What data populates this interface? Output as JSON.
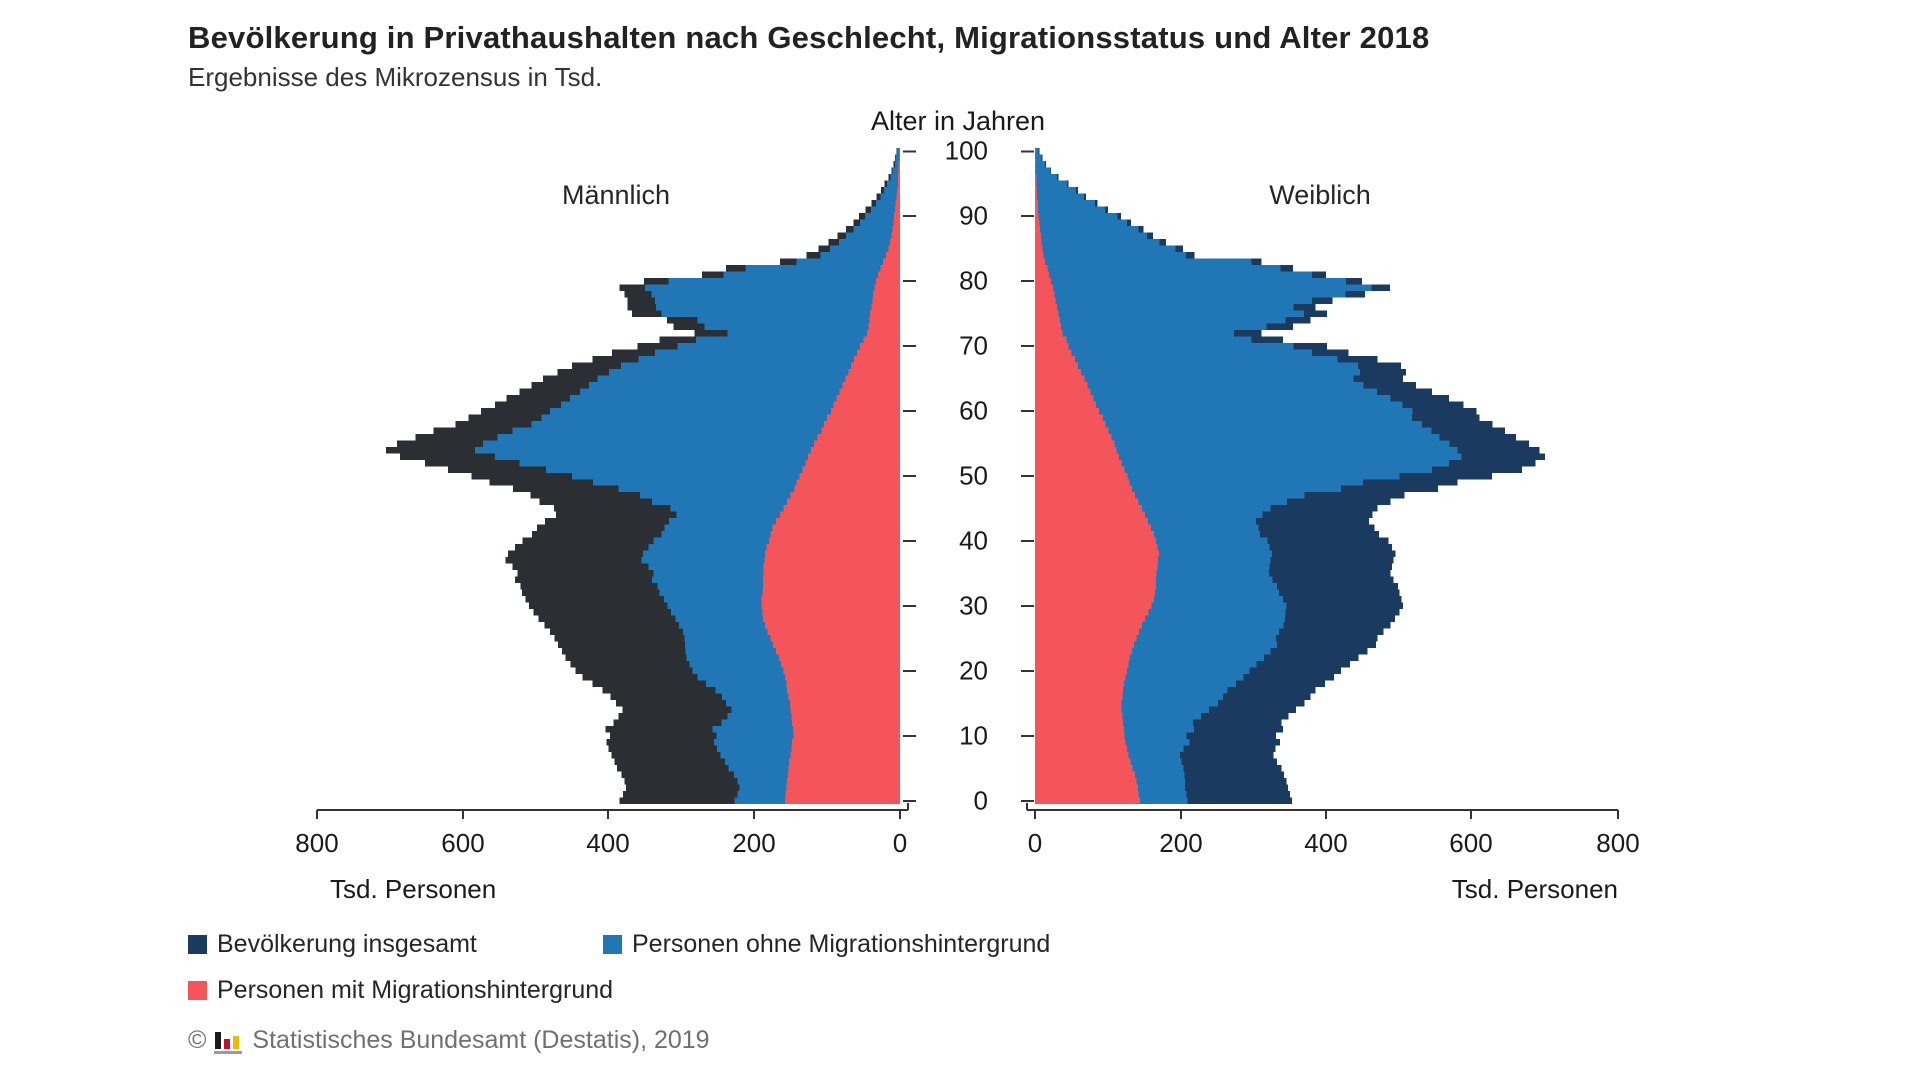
{
  "title": "Bevölkerung in Privathaushalten nach Geschlecht, Migrationsstatus und Alter 2018",
  "subtitle": "Ergebnisse des Mikrozensus in Tsd.",
  "center_axis": {
    "label": "Alter in Jahren",
    "tick_values": [
      0,
      10,
      20,
      30,
      40,
      50,
      60,
      70,
      80,
      90,
      100
    ]
  },
  "left_panel": {
    "header": "Männlich",
    "x_tick_labels": [
      "800",
      "600",
      "400",
      "200",
      "0"
    ],
    "x_axis_label": "Tsd. Personen"
  },
  "right_panel": {
    "header": "Weiblich",
    "x_tick_labels": [
      "0",
      "200",
      "400",
      "600",
      "800"
    ],
    "x_axis_label": "Tsd. Personen"
  },
  "legend": [
    {
      "label": "Bevölkerung insgesamt",
      "color": "#1b3a5f"
    },
    {
      "label": "Personen ohne Migrationshintergrund",
      "color": "#2176b5"
    },
    {
      "label": "Personen mit Migrationshintergrund",
      "color": "#f4555a"
    }
  ],
  "footer": {
    "copyright": "©",
    "source": "Statistisches Bundesamt (Destatis), 2019"
  },
  "colors": {
    "male_total": "#2b2e33",
    "female_total": "#1b3a5f",
    "ohne_migration": "#2176b5",
    "mit_migration": "#f4555a",
    "axis": "#333333",
    "text": "#1a1a1a"
  },
  "chart_data": {
    "type": "bar",
    "variant": "population-pyramid",
    "unit": "Tsd. Personen",
    "age_min": 0,
    "age_max": 100,
    "x_range_each_side": [
      0,
      800
    ],
    "series": [
      {
        "name": "Männlich – Bevölkerung insgesamt",
        "values": [
          385,
          380,
          376,
          378,
          382,
          388,
          392,
          396,
          400,
          403,
          398,
          404,
          393,
          386,
          381,
          390,
          397,
          408,
          422,
          436,
          445,
          452,
          459,
          464,
          469,
          474,
          480,
          488,
          496,
          503,
          509,
          514,
          519,
          521,
          528,
          525,
          532,
          541,
          538,
          528,
          518,
          505,
          498,
          487,
          472,
          475,
          495,
          507,
          531,
          563,
          588,
          620,
          652,
          686,
          705,
          690,
          665,
          640,
          610,
          592,
          575,
          556,
          540,
          522,
          506,
          490,
          470,
          450,
          422,
          395,
          360,
          330,
          282,
          311,
          320,
          368,
          374,
          374,
          378,
          385,
          351,
          272,
          239,
          165,
          128,
          112,
          98,
          86,
          74,
          64,
          56,
          47,
          39,
          32,
          26,
          21,
          16,
          12,
          9,
          7,
          5
        ]
      },
      {
        "name": "Männlich – Personen ohne Migrationshintergrund",
        "values": [
          227,
          223,
          220,
          223,
          228,
          235,
          240,
          246,
          251,
          255,
          252,
          257,
          245,
          237,
          231,
          239,
          244,
          253,
          266,
          278,
          285,
          289,
          293,
          294,
          295,
          296,
          298,
          303,
          308,
          314,
          319,
          324,
          330,
          333,
          340,
          338,
          345,
          355,
          353,
          345,
          338,
          327,
          323,
          317,
          307,
          315,
          340,
          357,
          386,
          421,
          450,
          486,
          522,
          556,
          583,
          572,
          552,
          532,
          506,
          492,
          480,
          465,
          453,
          439,
          427,
          415,
          399,
          383,
          359,
          336,
          305,
          280,
          237,
          268,
          278,
          327,
          335,
          336,
          341,
          350,
          318,
          242,
          212,
          142,
          109,
          96,
          84,
          74,
          64,
          55,
          48,
          40,
          33,
          27,
          22,
          18,
          13,
          10,
          7,
          6,
          4
        ]
      },
      {
        "name": "Männlich – Personen mit Migrationshintergrund",
        "values": [
          158,
          157,
          156,
          155,
          154,
          153,
          152,
          150,
          149,
          148,
          146,
          147,
          148,
          149,
          150,
          151,
          153,
          155,
          156,
          158,
          160,
          163,
          166,
          170,
          174,
          178,
          182,
          185,
          188,
          189,
          190,
          190,
          189,
          188,
          188,
          187,
          187,
          186,
          185,
          183,
          180,
          178,
          175,
          170,
          165,
          160,
          155,
          150,
          145,
          142,
          138,
          134,
          130,
          126,
          122,
          118,
          113,
          108,
          104,
          100,
          95,
          91,
          87,
          83,
          79,
          75,
          71,
          67,
          63,
          59,
          55,
          50,
          45,
          43,
          42,
          41,
          39,
          38,
          37,
          35,
          33,
          30,
          27,
          23,
          19,
          16,
          14,
          12,
          10,
          9,
          8,
          7,
          6,
          5,
          4,
          3,
          3,
          2,
          2,
          1,
          1
        ]
      },
      {
        "name": "Weiblich – Bevölkerung insgesamt",
        "values": [
          353,
          350,
          347,
          345,
          342,
          338,
          332,
          327,
          330,
          336,
          331,
          340,
          338,
          348,
          358,
          370,
          378,
          385,
          398,
          410,
          420,
          432,
          444,
          456,
          468,
          470,
          478,
          488,
          494,
          500,
          505,
          503,
          500,
          498,
          492,
          488,
          490,
          492,
          495,
          490,
          485,
          472,
          466,
          458,
          463,
          470,
          488,
          507,
          553,
          580,
          627,
          668,
          687,
          700,
          692,
          678,
          660,
          645,
          628,
          610,
          606,
          588,
          568,
          545,
          523,
          505,
          509,
          502,
          470,
          430,
          401,
          340,
          311,
          354,
          378,
          401,
          385,
          408,
          453,
          487,
          449,
          399,
          354,
          311,
          219,
          203,
          180,
          162,
          149,
          132,
          118,
          100,
          86,
          70,
          59,
          46,
          32,
          22,
          15,
          10,
          6
        ]
      },
      {
        "name": "Weiblich – Personen ohne Migrationshintergrund",
        "values": [
          209,
          208,
          206,
          206,
          205,
          204,
          201,
          199,
          204,
          212,
          208,
          218,
          217,
          228,
          239,
          251,
          258,
          264,
          276,
          286,
          294,
          304,
          314,
          323,
          332,
          331,
          335,
          341,
          343,
          344,
          345,
          340,
          335,
          332,
          326,
          321,
          322,
          323,
          325,
          322,
          319,
          309,
          307,
          303,
          312,
          323,
          346,
          370,
          420,
          450,
          500,
          545,
          568,
          585,
          580,
          569,
          555,
          544,
          531,
          517,
          518,
          504,
          488,
          469,
          451,
          437,
          446,
          443,
          415,
          380,
          355,
          297,
          273,
          318,
          344,
          369,
          355,
          380,
          426,
          462,
          427,
          380,
          337,
          297,
          207,
          193,
          171,
          154,
          142,
          126,
          113,
          96,
          82,
          67,
          56,
          44,
          30,
          21,
          14,
          9,
          5
        ]
      },
      {
        "name": "Weiblich – Personen mit Migrationshintergrund",
        "values": [
          144,
          142,
          141,
          139,
          137,
          134,
          131,
          128,
          126,
          124,
          123,
          122,
          121,
          120,
          119,
          119,
          120,
          121,
          122,
          124,
          126,
          128,
          130,
          133,
          136,
          139,
          143,
          147,
          151,
          156,
          160,
          163,
          165,
          166,
          166,
          167,
          168,
          169,
          170,
          168,
          166,
          163,
          159,
          155,
          151,
          147,
          142,
          137,
          133,
          130,
          127,
          123,
          119,
          115,
          112,
          109,
          105,
          101,
          97,
          93,
          88,
          84,
          80,
          76,
          72,
          68,
          63,
          59,
          55,
          50,
          46,
          43,
          38,
          36,
          34,
          32,
          30,
          28,
          27,
          25,
          22,
          19,
          17,
          14,
          12,
          10,
          9,
          8,
          7,
          6,
          5,
          4,
          4,
          3,
          3,
          2,
          2,
          1,
          1,
          1,
          1
        ]
      }
    ],
    "title": "Bevölkerung in Privathaushalten nach Geschlecht, Migrationsstatus und Alter 2018",
    "xlabel": "Tsd. Personen",
    "ylabel": "Alter in Jahren",
    "legend_position": "bottom-left",
    "grid": false
  }
}
